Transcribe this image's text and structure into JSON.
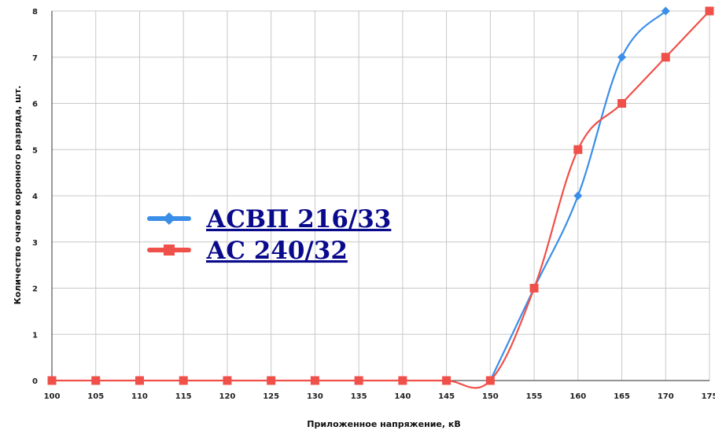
{
  "chart_data": {
    "type": "line",
    "title": "",
    "xlabel": "Приложенное напряжение, кВ",
    "ylabel": "Количество очагов коронного разряда, шт.",
    "x": [
      100,
      105,
      110,
      115,
      120,
      125,
      130,
      135,
      140,
      145,
      150,
      155,
      160,
      165,
      170,
      175
    ],
    "x_ticks": [
      "100",
      "105",
      "110",
      "115",
      "120",
      "125",
      "130",
      "135",
      "140",
      "145",
      "150",
      "155",
      "160",
      "165",
      "170",
      "175"
    ],
    "y_ticks": [
      "0",
      "1",
      "2",
      "3",
      "4",
      "5",
      "6",
      "7",
      "8"
    ],
    "ylim": [
      0,
      8
    ],
    "xlim": [
      100,
      175
    ],
    "grid": true,
    "legend_position": "center-left",
    "series": [
      {
        "name": "АСВП 216/33",
        "color": "#3b8ee8",
        "marker": "diamond",
        "x": [
          150,
          155,
          160,
          165,
          170
        ],
        "values": [
          0,
          2,
          4,
          7,
          8
        ]
      },
      {
        "name": "АС 240/32",
        "color": "#f0504a",
        "marker": "square",
        "x": [
          100,
          105,
          110,
          115,
          120,
          125,
          130,
          135,
          140,
          145,
          150,
          155,
          160,
          165,
          170,
          175
        ],
        "values": [
          0,
          0,
          0,
          0,
          0,
          0,
          0,
          0,
          0,
          0,
          0,
          2,
          5,
          6,
          7,
          8
        ]
      }
    ]
  }
}
